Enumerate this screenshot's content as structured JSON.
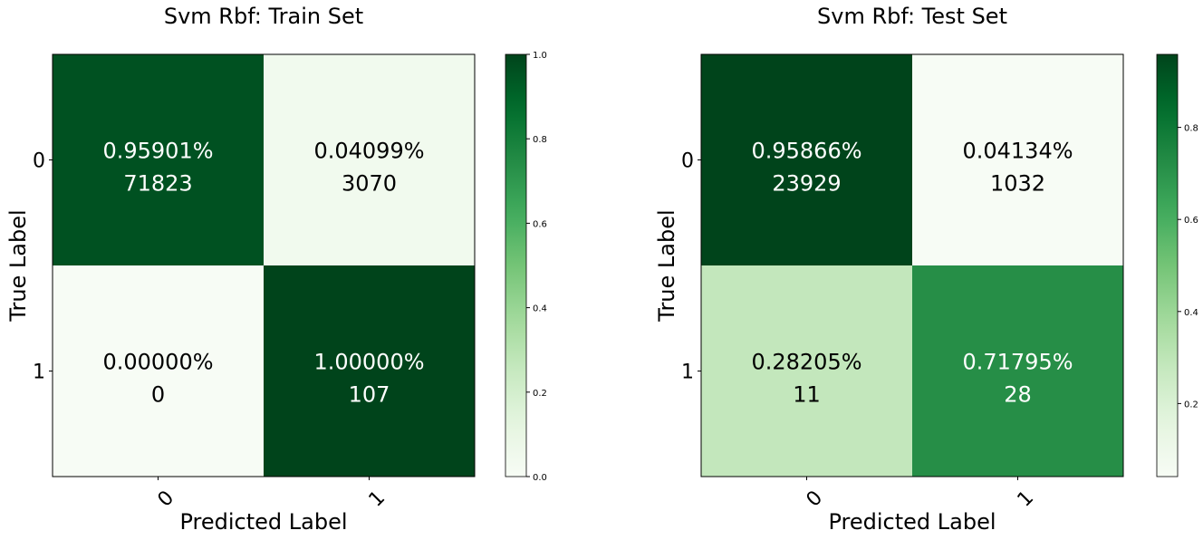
{
  "chart_data": [
    {
      "type": "heatmap",
      "title": "Svm Rbf: Train Set",
      "xlabel": "Predicted Label",
      "ylabel": "True Label",
      "x_categories": [
        "0",
        "1"
      ],
      "y_categories": [
        "0",
        "1"
      ],
      "values": [
        [
          0.95901,
          0.04099
        ],
        [
          0.0,
          1.0
        ]
      ],
      "cell_labels": [
        [
          "0.95901%",
          "0.04099%"
        ],
        [
          "0.00000%",
          "1.00000%"
        ]
      ],
      "counts": [
        [
          "71823",
          "3070"
        ],
        [
          "0",
          "107"
        ]
      ],
      "colormap": "Greens",
      "colorbar_range": [
        0,
        1
      ],
      "colorbar_ticks": [
        "0.0",
        "0.2",
        "0.4",
        "0.6",
        "0.8",
        "1.0"
      ]
    },
    {
      "type": "heatmap",
      "title": "Svm Rbf: Test Set",
      "xlabel": "Predicted Label",
      "ylabel": "True Label",
      "x_categories": [
        "0",
        "1"
      ],
      "y_categories": [
        "0",
        "1"
      ],
      "values": [
        [
          0.95866,
          0.04134
        ],
        [
          0.28205,
          0.71795
        ]
      ],
      "cell_labels": [
        [
          "0.95866%",
          "0.04134%"
        ],
        [
          "0.28205%",
          "0.71795%"
        ]
      ],
      "counts": [
        [
          "23929",
          "1032"
        ],
        [
          "11",
          "28"
        ]
      ],
      "colormap": "Greens",
      "colorbar_range": [
        0.04134,
        0.95866
      ],
      "colorbar_ticks": [
        "0.2",
        "0.4",
        "0.6",
        "0.8"
      ]
    }
  ],
  "colors": {
    "greens_low": "#f7fcf5",
    "greens_high": "#00441b",
    "text_dark": "#000000",
    "text_light": "#ffffff"
  }
}
